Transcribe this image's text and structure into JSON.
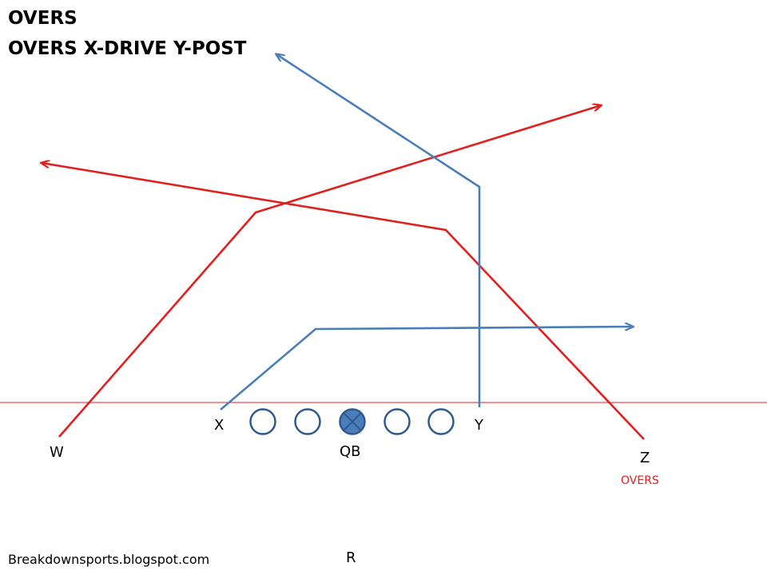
{
  "title": "OVERS",
  "subtitle": "OVERS X-DRIVE Y-POST",
  "players": {
    "w": "W",
    "x": "X",
    "qb": "QB",
    "y": "Y",
    "z": "Z",
    "r": "R"
  },
  "concept_label": "OVERS",
  "footer": "Breakdownsports.blogspot.com",
  "colors": {
    "blue_route": "#4a7ebb",
    "red_route": "#e0201e",
    "lineman_fill": "#ffffff",
    "qb_fill": "#4a7ebb",
    "lineman_stroke": "#2f5a8f",
    "scrimmage_line": "#e0201e"
  },
  "icons": {
    "qb_marker": "circle-with-x",
    "lineman_marker": "circle"
  }
}
